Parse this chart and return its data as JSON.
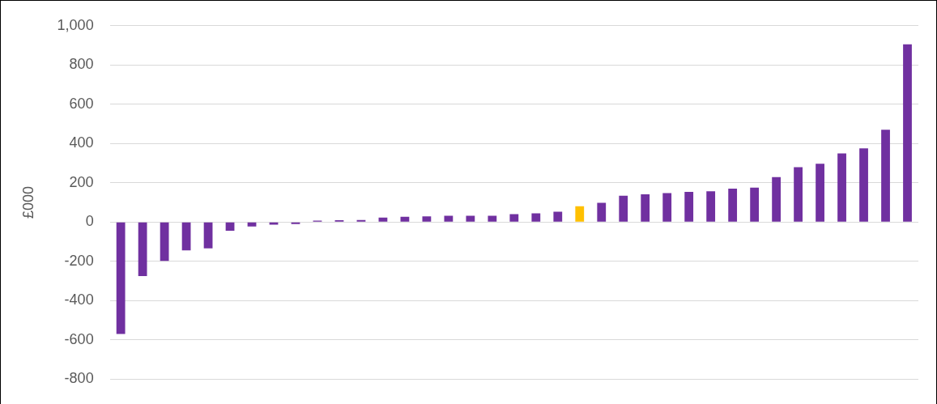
{
  "chart_data": {
    "type": "bar",
    "ylabel": "£000",
    "categories": [
      null,
      null,
      null,
      null,
      null,
      null,
      null,
      null,
      null,
      null,
      null,
      null,
      null,
      null,
      null,
      null,
      null,
      null,
      null,
      null,
      null,
      null,
      null,
      null,
      null,
      null,
      null,
      null,
      null,
      null,
      null,
      null,
      null,
      null,
      null,
      null,
      null
    ],
    "values": [
      -570,
      -275,
      -198,
      -144,
      -134,
      -44,
      -23,
      -13,
      -10,
      7,
      9,
      10,
      23,
      27,
      29,
      32,
      32,
      32,
      40,
      44,
      53,
      80,
      98,
      134,
      141,
      147,
      154,
      157,
      170,
      175,
      229,
      279,
      297,
      350,
      375,
      470,
      905
    ],
    "colors": [
      "#7030a0",
      "#7030a0",
      "#7030a0",
      "#7030a0",
      "#7030a0",
      "#7030a0",
      "#7030a0",
      "#7030a0",
      "#7030a0",
      "#7030a0",
      "#7030a0",
      "#7030a0",
      "#7030a0",
      "#7030a0",
      "#7030a0",
      "#7030a0",
      "#7030a0",
      "#7030a0",
      "#7030a0",
      "#7030a0",
      "#7030a0",
      "#ffc000",
      "#7030a0",
      "#7030a0",
      "#7030a0",
      "#7030a0",
      "#7030a0",
      "#7030a0",
      "#7030a0",
      "#7030a0",
      "#7030a0",
      "#7030a0",
      "#7030a0",
      "#7030a0",
      "#7030a0",
      "#7030a0",
      "#7030a0"
    ],
    "ylim": [
      -800,
      1000
    ],
    "yticks": [
      -800,
      -600,
      -400,
      -200,
      0,
      200,
      400,
      600,
      800,
      {
        "value": 1000,
        "label": "1,000"
      }
    ],
    "grid": "y",
    "legend": false
  }
}
